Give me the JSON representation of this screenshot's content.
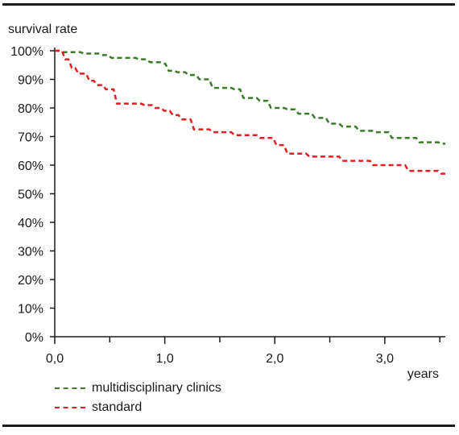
{
  "chart_data": {
    "type": "line",
    "ylabel": "survival rate",
    "xlabel": "years",
    "xlim": [
      0,
      3.55
    ],
    "ylim": [
      0,
      100
    ],
    "x_ticks": [
      0,
      1,
      2,
      3
    ],
    "x_tick_labels": [
      "0,0",
      "1,0",
      "2,0",
      "3,0"
    ],
    "x_minor_ticks": [
      0.5,
      1.5,
      2.5,
      3.5
    ],
    "y_ticks": [
      0,
      10,
      20,
      30,
      40,
      50,
      60,
      70,
      80,
      90,
      100
    ],
    "y_tick_labels": [
      "0%",
      "10%",
      "20%",
      "30%",
      "40%",
      "50%",
      "60%",
      "70%",
      "80%",
      "90%",
      "100%"
    ],
    "grid": false,
    "legend_position": "bottom-left",
    "series": [
      {
        "name": "multidisciplinary clinics",
        "color": "#3a7a2a",
        "line_style": "dashed",
        "step": true,
        "x": [
          0,
          0.05,
          0.25,
          0.42,
          0.5,
          0.75,
          0.85,
          0.98,
          1.02,
          1.1,
          1.2,
          1.3,
          1.42,
          1.62,
          1.7,
          1.85,
          1.95,
          2.1,
          2.2,
          2.35,
          2.48,
          2.6,
          2.75,
          2.9,
          3.05,
          3.3,
          3.5
        ],
        "y": [
          100,
          99.5,
          99,
          98.5,
          97.5,
          97,
          96,
          95.5,
          93,
          92.5,
          91.5,
          90,
          87,
          86.5,
          83.5,
          82.5,
          80,
          79.5,
          78,
          76.5,
          74.5,
          73.5,
          72,
          71.5,
          69.5,
          68,
          67.5
        ]
      },
      {
        "name": "standard",
        "color": "#e02020",
        "line_style": "dashed",
        "step": true,
        "x": [
          0,
          0.08,
          0.14,
          0.2,
          0.3,
          0.37,
          0.45,
          0.55,
          0.8,
          0.9,
          0.98,
          1.06,
          1.14,
          1.25,
          1.42,
          1.62,
          1.85,
          2.0,
          2.1,
          2.3,
          2.6,
          2.88,
          3.2,
          3.5
        ],
        "y": [
          100,
          97,
          94,
          92,
          89.5,
          88,
          86.5,
          81.5,
          81,
          80,
          79,
          77.5,
          76,
          72.5,
          71.5,
          70.5,
          69.5,
          67,
          64,
          63,
          61.5,
          60,
          58,
          57
        ]
      }
    ]
  }
}
